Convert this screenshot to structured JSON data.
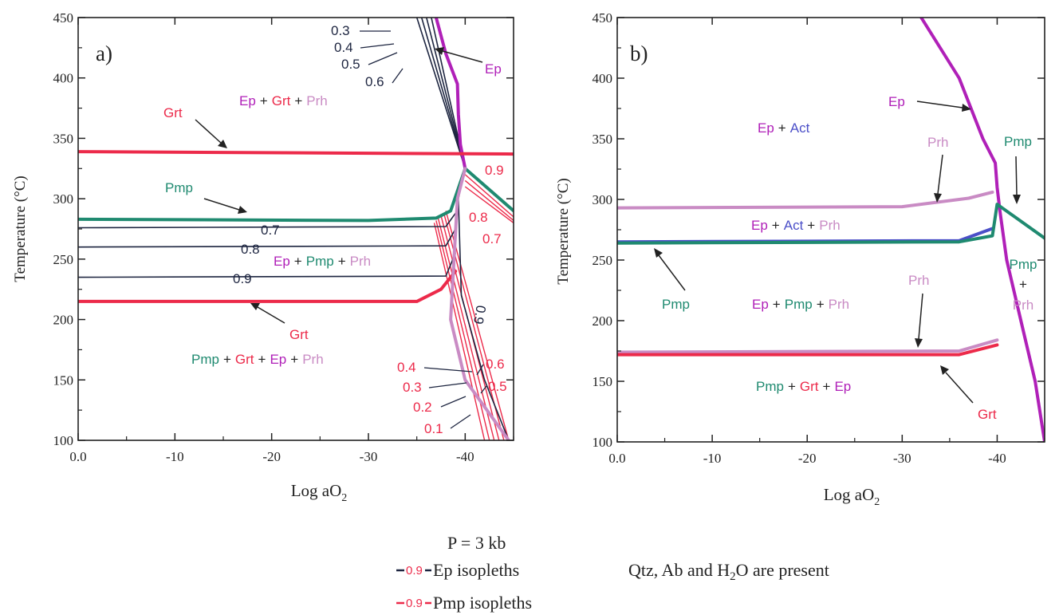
{
  "colors": {
    "epidote": "#b020b8",
    "garnet": "#ec2a4a",
    "pumpellyite": "#1f8a70",
    "prehnite": "#c98bc4",
    "actinolite": "#4b4fc8",
    "ep_isopleth": "#1d2540",
    "pmp_isopleth": "#ec2a4a",
    "axis": "#222222"
  },
  "chart_data": [
    {
      "type": "line",
      "panel_label": "a)",
      "xlabel": "Log aO",
      "xlabel_sub": "2",
      "ylabel": "Temperature (°C)",
      "xlim": [
        0,
        -45
      ],
      "ylim": [
        100,
        450
      ],
      "x_ticks": [
        "0.0",
        "-10",
        "-20",
        "-30",
        "-40"
      ],
      "y_ticks": [
        "100",
        "150",
        "200",
        "250",
        "300",
        "350",
        "400",
        "450"
      ],
      "series": [
        {
          "mineral": "Ep",
          "kind": "boundary",
          "points": [
            [
              -37,
              450
            ],
            [
              -38,
              420
            ],
            [
              -39.2,
              395
            ],
            [
              -39.3,
              370
            ],
            [
              -39.5,
              345
            ],
            [
              -40,
              325
            ]
          ]
        },
        {
          "mineral": "Grt",
          "kind": "boundary",
          "points": [
            [
              0,
              339
            ],
            [
              -45,
              337
            ]
          ]
        },
        {
          "mineral": "Pmp",
          "kind": "boundary",
          "points": [
            [
              0,
              283
            ],
            [
              -30,
              282
            ],
            [
              -37,
              284
            ],
            [
              -38.5,
              290
            ],
            [
              -40,
              325
            ]
          ]
        },
        {
          "mineral": "Pmp",
          "kind": "boundary",
          "points": [
            [
              -40,
              325
            ],
            [
              -45,
              290
            ]
          ]
        },
        {
          "mineral": "Grt",
          "kind": "boundary",
          "points": [
            [
              0,
              215
            ],
            [
              -35,
              215
            ],
            [
              -37.5,
              225
            ],
            [
              -39,
              240
            ]
          ]
        },
        {
          "mineral": "Prh",
          "kind": "boundary",
          "points": [
            [
              -40,
              325
            ],
            [
              -39.2,
              300
            ],
            [
              -38.5,
              200
            ],
            [
              -40,
              150
            ],
            [
              -44.5,
              100
            ]
          ]
        }
      ],
      "ep_isopleths": [
        {
          "label": "0.3",
          "points": [
            [
              -35,
              450
            ],
            [
              -40,
              325
            ]
          ]
        },
        {
          "label": "0.4",
          "points": [
            [
              -35.5,
              450
            ],
            [
              -40,
              325
            ]
          ]
        },
        {
          "label": "0.5",
          "points": [
            [
              -36,
              450
            ],
            [
              -40,
              325
            ]
          ]
        },
        {
          "label": "0.6",
          "points": [
            [
              -36.5,
              450
            ],
            [
              -40,
              325
            ]
          ]
        },
        {
          "label": "0.7",
          "points": [
            [
              0,
              276
            ],
            [
              -38,
              277
            ],
            [
              -39,
              288
            ]
          ]
        },
        {
          "label": "0.8",
          "points": [
            [
              0,
              260
            ],
            [
              -38,
              261
            ],
            [
              -39,
              275
            ]
          ]
        },
        {
          "label": "0.9",
          "points": [
            [
              0,
              235
            ],
            [
              -38,
              236
            ],
            [
              -39,
              255
            ]
          ]
        },
        {
          "label": "0.9",
          "points": [
            [
              -40,
              325
            ],
            [
              -39.3,
              300
            ],
            [
              -39.6,
              220
            ],
            [
              -42,
              150
            ],
            [
              -44.5,
              100
            ]
          ]
        }
      ],
      "pmp_isopleths": [
        {
          "label": "0.9",
          "points": [
            [
              -40,
              320
            ],
            [
              -45,
              285
            ]
          ]
        },
        {
          "label": "0.8",
          "points": [
            [
              -40,
              315
            ],
            [
              -45,
              282
            ]
          ]
        },
        {
          "label": "0.7",
          "points": [
            [
              -40,
              310
            ],
            [
              -45,
              280
            ]
          ]
        },
        {
          "label": "0.6",
          "points": [
            [
              -38,
              290
            ],
            [
              -44.5,
              100
            ]
          ]
        },
        {
          "label": "0.5",
          "points": [
            [
              -37.8,
              288
            ],
            [
              -44,
              100
            ]
          ]
        },
        {
          "label": "0.4",
          "points": [
            [
              -37.5,
              286
            ],
            [
              -43.5,
              100
            ]
          ]
        },
        {
          "label": "0.3",
          "points": [
            [
              -37.2,
              284
            ],
            [
              -43,
              100
            ]
          ]
        },
        {
          "label": "0.2",
          "points": [
            [
              -37,
              282
            ],
            [
              -42.5,
              100
            ]
          ]
        },
        {
          "label": "0.1",
          "points": [
            [
              -36.8,
              280
            ],
            [
              -42,
              100
            ]
          ]
        }
      ]
    },
    {
      "type": "line",
      "panel_label": "b)",
      "xlabel": "Log aO",
      "xlabel_sub": "2",
      "ylabel": "Temperature (°C)",
      "xlim": [
        0,
        -45
      ],
      "ylim": [
        100,
        450
      ],
      "x_ticks": [
        "0.0",
        "-10",
        "-20",
        "-30",
        "-40"
      ],
      "y_ticks": [
        "100",
        "150",
        "200",
        "250",
        "300",
        "350",
        "400",
        "450"
      ],
      "series": [
        {
          "mineral": "Ep",
          "kind": "boundary",
          "points": [
            [
              -32,
              450
            ],
            [
              -36,
              400
            ],
            [
              -38.5,
              350
            ],
            [
              -39.8,
              330
            ],
            [
              -40,
              310
            ],
            [
              -40.3,
              290
            ],
            [
              -41,
              250
            ],
            [
              -42.5,
              200
            ],
            [
              -44,
              150
            ],
            [
              -45,
              100
            ]
          ]
        },
        {
          "mineral": "Prh",
          "kind": "boundary",
          "points": [
            [
              0,
              293
            ],
            [
              -30,
              294
            ],
            [
              -37,
              301
            ],
            [
              -39.5,
              306
            ]
          ]
        },
        {
          "mineral": "Act",
          "kind": "boundary",
          "points": [
            [
              0,
              265
            ],
            [
              -36,
              266
            ],
            [
              -39.5,
              276
            ]
          ]
        },
        {
          "mineral": "Pmp",
          "kind": "boundary",
          "points": [
            [
              0,
              264
            ],
            [
              -36,
              265
            ],
            [
              -39.5,
              270
            ],
            [
              -40,
              296
            ],
            [
              -45,
              268
            ]
          ]
        },
        {
          "mineral": "Prh",
          "kind": "boundary",
          "points": [
            [
              0,
              174
            ],
            [
              -36,
              175
            ],
            [
              -40,
              184
            ]
          ]
        },
        {
          "mineral": "Grt",
          "kind": "boundary",
          "points": [
            [
              0,
              172
            ],
            [
              -36,
              172
            ],
            [
              -40,
              180
            ]
          ]
        }
      ]
    }
  ],
  "panel_a": {
    "label": "a)",
    "ep_isopleth_labels": [
      "0.3",
      "0.4",
      "0.5",
      "0.6",
      "0.7",
      "0.8",
      "0.9",
      "0.9"
    ],
    "pmp_isopleth_labels": [
      "0.9",
      "0.8",
      "0.7",
      "0.6",
      "0.5",
      "0.4",
      "0.3",
      "0.2",
      "0.1"
    ],
    "mineral_labels": {
      "ep": "Ep",
      "grt_upper": "Grt",
      "pmp": "Pmp",
      "grt_lower": "Grt"
    },
    "field_upper": [
      "Ep",
      "+",
      "Grt",
      "+",
      "Prh"
    ],
    "field_middle": [
      "Ep",
      "+",
      "Pmp",
      "+",
      "Prh"
    ],
    "field_lower": [
      "Pmp",
      "+",
      "Grt",
      "+",
      "Ep",
      "+",
      "Prh"
    ]
  },
  "panel_b": {
    "label": "b)",
    "mineral_labels": {
      "ep": "Ep",
      "prh_upper": "Prh",
      "pmp_right": "Pmp",
      "pmp_left": "Pmp",
      "prh_lower": "Prh",
      "grt": "Grt"
    },
    "field_top": [
      "Ep",
      "+",
      "Act"
    ],
    "field_upper_mid": [
      "Ep",
      "+",
      "Act",
      "+",
      "Prh"
    ],
    "field_lower_mid": [
      "Ep",
      "+",
      "Pmp",
      "+",
      "Prh"
    ],
    "field_bottom": [
      "Pmp",
      "+",
      "Grt",
      "+",
      "Ep"
    ],
    "field_right": [
      "Pmp",
      "+",
      "Prh"
    ]
  },
  "footer": {
    "pressure": "P = 3 kb",
    "ep_key_value": "0.9",
    "ep_key_text": "Ep isopleths",
    "pmp_key_value": "0.9",
    "pmp_key_text": "Pmp isopleths",
    "phases_text_1": "Qtz, Ab and H",
    "phases_text_sub": "2",
    "phases_text_2": "O are present"
  }
}
